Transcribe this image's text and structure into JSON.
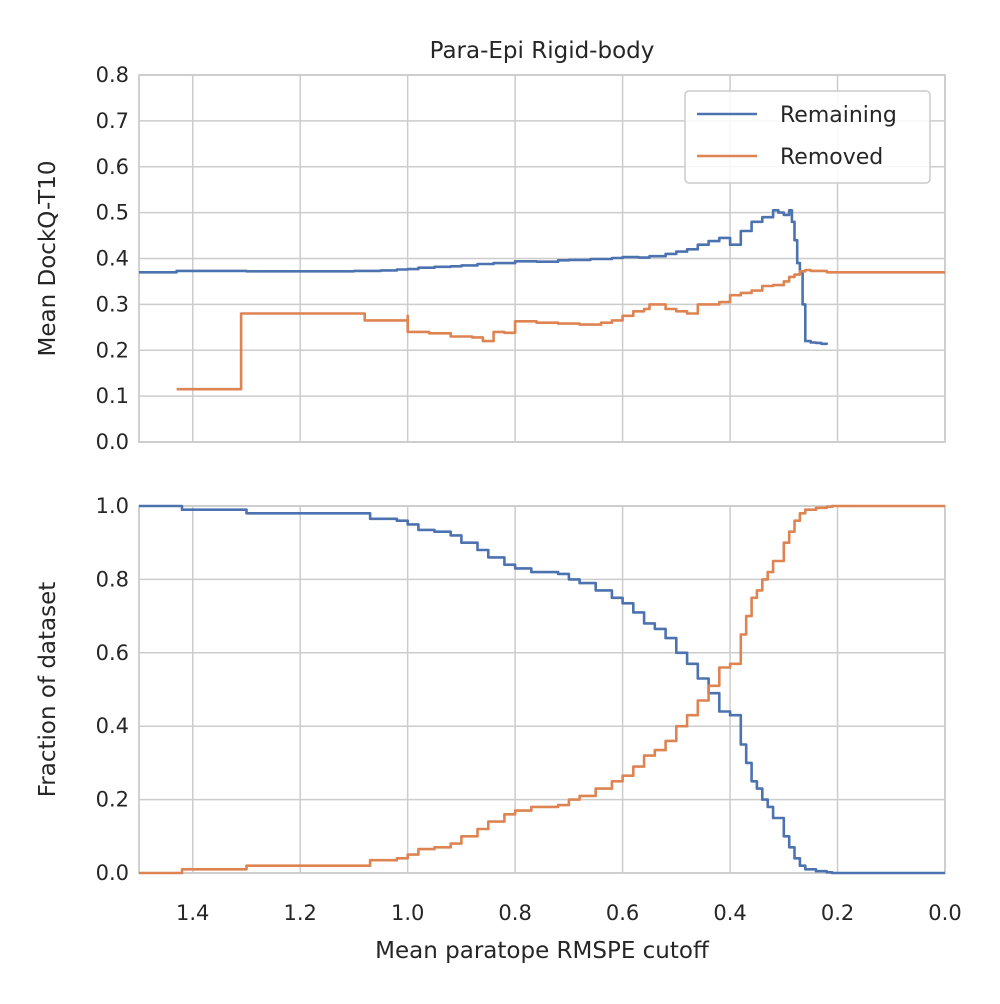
{
  "chart_data": [
    {
      "type": "line",
      "title": "Para-Epi Rigid-body",
      "xlabel": "",
      "ylabel": "Mean DockQ-T10",
      "xlim": [
        1.5,
        0.0
      ],
      "ylim": [
        0.0,
        0.8
      ],
      "x_inverted": true,
      "grid": true,
      "legend_position": "top-right",
      "xticks": [
        "1.4",
        "1.2",
        "1.0",
        "0.8",
        "0.6",
        "0.4",
        "0.2",
        "0.0"
      ],
      "xtick_values": [
        1.4,
        1.2,
        1.0,
        0.8,
        0.6,
        0.4,
        0.2,
        0.0
      ],
      "xtick_labels_visible": false,
      "yticks": [
        "0.0",
        "0.1",
        "0.2",
        "0.3",
        "0.4",
        "0.5",
        "0.6",
        "0.7",
        "0.8"
      ],
      "ytick_values": [
        0.0,
        0.1,
        0.2,
        0.3,
        0.4,
        0.5,
        0.6,
        0.7,
        0.8
      ],
      "series": [
        {
          "name": "Remaining",
          "color": "#4c72b0",
          "x": [
            1.5,
            1.43,
            1.3,
            1.2,
            1.1,
            1.05,
            1.02,
            1.0,
            0.98,
            0.95,
            0.92,
            0.9,
            0.87,
            0.84,
            0.8,
            0.76,
            0.72,
            0.7,
            0.66,
            0.62,
            0.6,
            0.57,
            0.55,
            0.52,
            0.5,
            0.48,
            0.46,
            0.44,
            0.42,
            0.4,
            0.38,
            0.36,
            0.34,
            0.32,
            0.31,
            0.3,
            0.29,
            0.285,
            0.28,
            0.275,
            0.27,
            0.265,
            0.26,
            0.25,
            0.24,
            0.23,
            0.22
          ],
          "y": [
            0.37,
            0.373,
            0.372,
            0.372,
            0.373,
            0.374,
            0.376,
            0.377,
            0.38,
            0.382,
            0.383,
            0.385,
            0.388,
            0.39,
            0.394,
            0.393,
            0.396,
            0.397,
            0.399,
            0.401,
            0.403,
            0.402,
            0.405,
            0.41,
            0.415,
            0.42,
            0.43,
            0.438,
            0.445,
            0.43,
            0.46,
            0.48,
            0.49,
            0.505,
            0.5,
            0.495,
            0.505,
            0.48,
            0.44,
            0.39,
            0.37,
            0.3,
            0.22,
            0.217,
            0.216,
            0.214,
            0.212
          ]
        },
        {
          "name": "Removed",
          "color": "#dd8452",
          "x": [
            1.43,
            1.35,
            1.315,
            1.31,
            1.2,
            1.1,
            1.08,
            1.02,
            1.0,
            1.0,
            0.96,
            0.92,
            0.88,
            0.86,
            0.84,
            0.82,
            0.8,
            0.76,
            0.72,
            0.68,
            0.64,
            0.62,
            0.6,
            0.58,
            0.56,
            0.55,
            0.52,
            0.5,
            0.48,
            0.46,
            0.44,
            0.42,
            0.4,
            0.38,
            0.36,
            0.34,
            0.32,
            0.3,
            0.29,
            0.28,
            0.27,
            0.26,
            0.25,
            0.22,
            0.0
          ],
          "y": [
            0.115,
            0.115,
            0.115,
            0.28,
            0.28,
            0.28,
            0.265,
            0.265,
            0.275,
            0.24,
            0.237,
            0.23,
            0.228,
            0.22,
            0.24,
            0.238,
            0.263,
            0.26,
            0.258,
            0.256,
            0.26,
            0.265,
            0.275,
            0.285,
            0.29,
            0.3,
            0.29,
            0.285,
            0.28,
            0.3,
            0.3,
            0.305,
            0.32,
            0.325,
            0.33,
            0.34,
            0.342,
            0.35,
            0.36,
            0.365,
            0.372,
            0.375,
            0.373,
            0.37,
            0.37
          ]
        }
      ]
    },
    {
      "type": "line",
      "title": "",
      "xlabel": "Mean paratope RMSPE cutoff",
      "ylabel": "Fraction of dataset",
      "xlim": [
        1.5,
        0.0
      ],
      "ylim": [
        0.0,
        1.0
      ],
      "x_inverted": true,
      "grid": true,
      "xticks": [
        "1.4",
        "1.2",
        "1.0",
        "0.8",
        "0.6",
        "0.4",
        "0.2",
        "0.0"
      ],
      "xtick_values": [
        1.4,
        1.2,
        1.0,
        0.8,
        0.6,
        0.4,
        0.2,
        0.0
      ],
      "xtick_labels_visible": true,
      "yticks": [
        "0.0",
        "0.2",
        "0.4",
        "0.6",
        "0.8",
        "1.0"
      ],
      "ytick_values": [
        0.0,
        0.2,
        0.4,
        0.6,
        0.8,
        1.0
      ],
      "series": [
        {
          "name": "Remaining",
          "color": "#4c72b0",
          "x": [
            1.5,
            1.43,
            1.42,
            1.31,
            1.3,
            1.08,
            1.07,
            1.02,
            1.0,
            0.98,
            0.95,
            0.92,
            0.9,
            0.87,
            0.85,
            0.82,
            0.8,
            0.77,
            0.72,
            0.7,
            0.68,
            0.65,
            0.62,
            0.6,
            0.58,
            0.56,
            0.54,
            0.52,
            0.5,
            0.48,
            0.46,
            0.44,
            0.42,
            0.4,
            0.38,
            0.37,
            0.36,
            0.35,
            0.34,
            0.33,
            0.32,
            0.3,
            0.29,
            0.28,
            0.27,
            0.26,
            0.24,
            0.22,
            0.21,
            0.0
          ],
          "y": [
            1.0,
            1.0,
            0.99,
            0.99,
            0.98,
            0.98,
            0.965,
            0.96,
            0.95,
            0.935,
            0.93,
            0.92,
            0.9,
            0.88,
            0.86,
            0.84,
            0.83,
            0.82,
            0.815,
            0.8,
            0.79,
            0.77,
            0.75,
            0.735,
            0.71,
            0.68,
            0.665,
            0.64,
            0.6,
            0.57,
            0.53,
            0.49,
            0.44,
            0.43,
            0.35,
            0.3,
            0.25,
            0.23,
            0.2,
            0.18,
            0.15,
            0.1,
            0.07,
            0.04,
            0.02,
            0.01,
            0.005,
            0.002,
            0.0,
            0.0
          ]
        },
        {
          "name": "Removed",
          "color": "#dd8452",
          "x": [
            1.5,
            1.43,
            1.42,
            1.31,
            1.3,
            1.08,
            1.07,
            1.02,
            1.0,
            0.98,
            0.95,
            0.92,
            0.9,
            0.87,
            0.85,
            0.82,
            0.8,
            0.77,
            0.72,
            0.7,
            0.68,
            0.65,
            0.62,
            0.6,
            0.58,
            0.56,
            0.54,
            0.52,
            0.5,
            0.48,
            0.46,
            0.44,
            0.42,
            0.4,
            0.38,
            0.37,
            0.36,
            0.35,
            0.34,
            0.33,
            0.32,
            0.3,
            0.29,
            0.28,
            0.27,
            0.26,
            0.24,
            0.22,
            0.21,
            0.0
          ],
          "y": [
            0.0,
            0.0,
            0.01,
            0.01,
            0.02,
            0.02,
            0.035,
            0.04,
            0.05,
            0.065,
            0.07,
            0.08,
            0.1,
            0.12,
            0.14,
            0.16,
            0.17,
            0.18,
            0.185,
            0.2,
            0.21,
            0.23,
            0.25,
            0.265,
            0.29,
            0.32,
            0.335,
            0.36,
            0.4,
            0.43,
            0.47,
            0.51,
            0.56,
            0.57,
            0.65,
            0.7,
            0.75,
            0.77,
            0.8,
            0.82,
            0.85,
            0.9,
            0.93,
            0.96,
            0.98,
            0.99,
            0.995,
            0.998,
            1.0,
            1.0
          ]
        }
      ]
    }
  ],
  "legend": {
    "items": [
      {
        "label": "Remaining",
        "color": "#4c72b0"
      },
      {
        "label": "Removed",
        "color": "#dd8452"
      }
    ]
  }
}
